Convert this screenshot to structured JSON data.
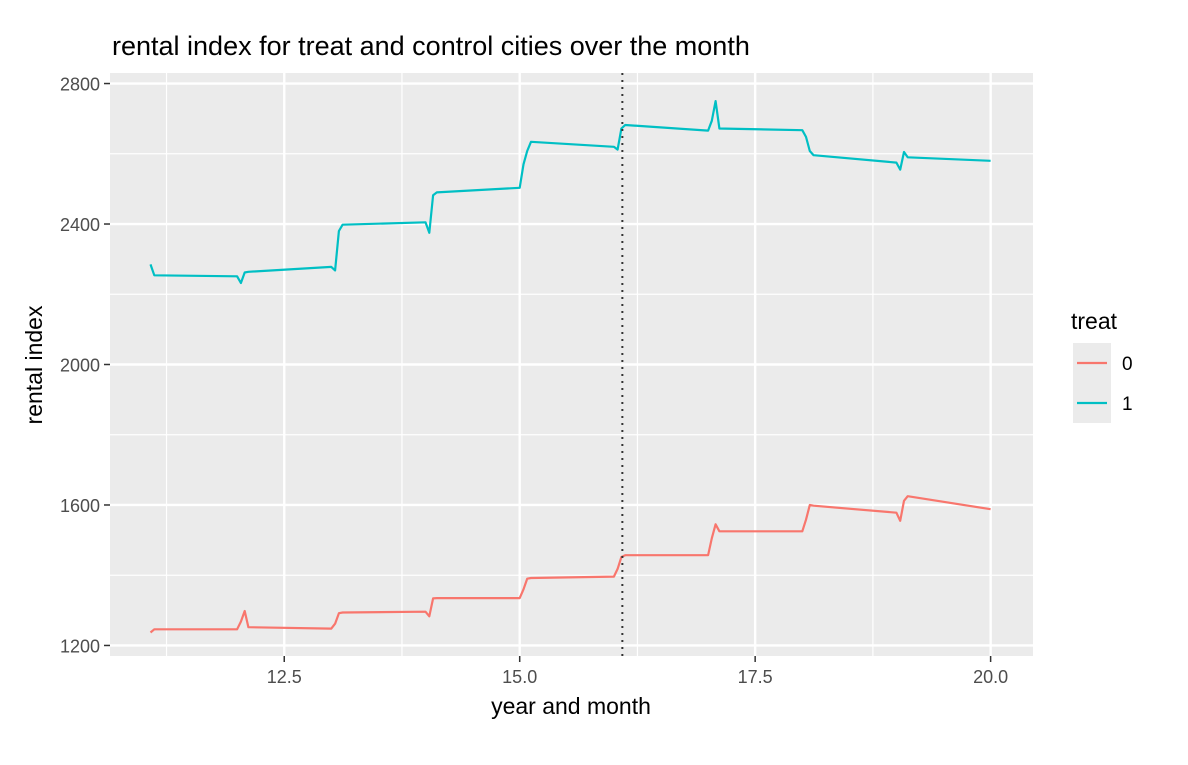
{
  "chart_data": {
    "type": "line",
    "title": "rental index for treat and control cities over the month",
    "xlabel": "year and month",
    "ylabel": "rental index",
    "xlim": [
      10.65,
      20.45
    ],
    "ylim": [
      1170,
      2830
    ],
    "x_major_ticks": [
      12.5,
      15.0,
      17.5,
      20.0
    ],
    "x_tick_labels": [
      "12.5",
      "15.0",
      "17.5",
      "20.0"
    ],
    "x_minor_ticks": [
      11.25,
      13.75,
      16.25,
      18.75
    ],
    "y_major_ticks": [
      1200,
      1600,
      2000,
      2400,
      2800
    ],
    "y_tick_labels": [
      "1200",
      "1600",
      "2000",
      "2400",
      "2800"
    ],
    "y_minor_ticks": [
      1400,
      1800,
      2200,
      2600
    ],
    "grid": true,
    "vline": {
      "x": 16.09,
      "style": "dotted",
      "color": "#333333"
    },
    "legend": {
      "title": "treat",
      "position": "right"
    },
    "series": [
      {
        "name": "0",
        "color": "#F8766D",
        "x": [
          11.08,
          11.12,
          12.0,
          12.04,
          12.08,
          12.12,
          13.0,
          13.04,
          13.08,
          13.12,
          14.0,
          14.04,
          14.08,
          14.12,
          15.0,
          15.04,
          15.08,
          15.12,
          16.0,
          16.04,
          16.08,
          16.12,
          17.0,
          17.04,
          17.08,
          17.12,
          18.0,
          18.04,
          18.08,
          18.12,
          19.0,
          19.04,
          19.08,
          19.12,
          20.0
        ],
        "y": [
          1237,
          1246,
          1246,
          1268,
          1298,
          1252,
          1248,
          1262,
          1292,
          1294,
          1296,
          1283,
          1334,
          1335,
          1335,
          1360,
          1390,
          1392,
          1396,
          1418,
          1452,
          1457,
          1457,
          1505,
          1545,
          1525,
          1525,
          1558,
          1600,
          1598,
          1578,
          1555,
          1612,
          1625,
          1588
        ]
      },
      {
        "name": "1",
        "color": "#00BFC4",
        "x": [
          11.08,
          11.12,
          12.0,
          12.04,
          12.08,
          12.12,
          13.0,
          13.04,
          13.08,
          13.12,
          14.0,
          14.04,
          14.08,
          14.12,
          15.0,
          15.04,
          15.08,
          15.12,
          16.0,
          16.04,
          16.08,
          16.12,
          17.0,
          17.04,
          17.08,
          17.12,
          18.0,
          18.04,
          18.08,
          18.12,
          19.0,
          19.04,
          19.08,
          19.12,
          20.0
        ],
        "y": [
          2285,
          2254,
          2251,
          2232,
          2262,
          2264,
          2278,
          2268,
          2380,
          2398,
          2405,
          2375,
          2482,
          2490,
          2503,
          2570,
          2608,
          2634,
          2620,
          2612,
          2672,
          2682,
          2666,
          2694,
          2750,
          2672,
          2667,
          2648,
          2608,
          2596,
          2575,
          2555,
          2605,
          2590,
          2580
        ]
      }
    ]
  }
}
